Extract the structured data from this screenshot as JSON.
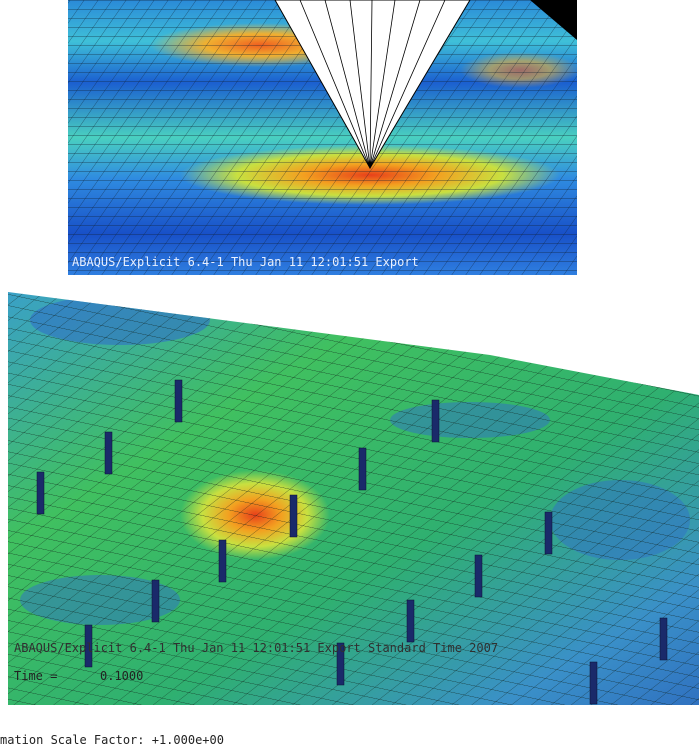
{
  "top_panel": {
    "footer": "ABAQUS/Explicit 6.4-1    Thu Jan 11 12:01:51 Export"
  },
  "bottom_panel": {
    "footer": "ABAQUS/Explicit 6.4-1    Thu Jan 11 12:01:51 Export Standard Time 2007",
    "time_label": "Time =",
    "time_value": "0.1000",
    "scale_factor": "mation Scale Factor: +1.000e+00"
  }
}
